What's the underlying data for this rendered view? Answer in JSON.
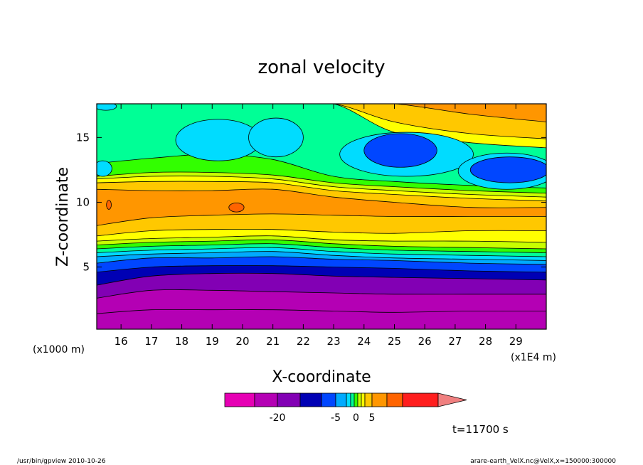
{
  "chart_data": {
    "type": "heatmap",
    "title": "zonal velocity",
    "xlabel": "X-coordinate",
    "ylabel": "Z-coordinate",
    "x_unit": "(x1E4 m)",
    "y_unit": "(x1000 m)",
    "xlim": [
      15.2,
      30.0
    ],
    "ylim": [
      0.2,
      17.6
    ],
    "x_ticks": [
      16,
      17,
      18,
      19,
      20,
      21,
      22,
      23,
      24,
      25,
      26,
      27,
      28,
      29
    ],
    "y_ticks": [
      5,
      10,
      15
    ],
    "x_tick_labels": [
      "16",
      "17",
      "18",
      "19",
      "20",
      "21",
      "22",
      "23",
      "24",
      "25",
      "26",
      "27",
      "28",
      "29"
    ],
    "y_tick_labels": [
      "5",
      "10",
      "15"
    ],
    "time_label": "t=11700 s",
    "colorbar": {
      "levels": [
        -30,
        -25,
        -20,
        -15,
        -10,
        -5,
        -2.5,
        -1.5,
        -0.5,
        0.5,
        1.5,
        2.5,
        5,
        10,
        15,
        20
      ],
      "colors": [
        "#e600b4",
        "#b400b4",
        "#8200b4",
        "#0000b4",
        "#0046ff",
        "#00aaff",
        "#00dcff",
        "#00ff96",
        "#32ff00",
        "#c8ff00",
        "#ffff00",
        "#ffc800",
        "#ff9600",
        "#ff6400",
        "#ff1e1e",
        "#f08080"
      ],
      "tick_values": [
        -20,
        -5,
        0,
        5
      ],
      "tick_labels": [
        "-20",
        "-5",
        "0",
        "5"
      ]
    },
    "bands": [
      {
        "v": -22,
        "base": [
          0.0,
          0.2,
          0.2,
          0.2,
          0.2,
          0.2,
          0.2,
          0.2
        ]
      },
      {
        "v": -21,
        "base": [
          1.4,
          1.7,
          1.7,
          1.7,
          1.6,
          1.5,
          1.6,
          1.6
        ]
      },
      {
        "v": -17,
        "base": [
          2.6,
          3.2,
          3.2,
          3.1,
          3.0,
          2.9,
          2.9,
          2.9
        ]
      },
      {
        "v": -13,
        "base": [
          3.6,
          4.3,
          4.5,
          4.5,
          4.3,
          4.2,
          4.1,
          4.0
        ]
      },
      {
        "v": -8,
        "base": [
          4.6,
          5.0,
          5.1,
          5.1,
          5.0,
          4.9,
          4.7,
          4.6
        ]
      },
      {
        "v": -4,
        "base": [
          5.3,
          5.7,
          5.7,
          5.8,
          5.6,
          5.5,
          5.3,
          5.2
        ]
      },
      {
        "v": -2,
        "base": [
          5.8,
          6.0,
          6.1,
          6.2,
          5.9,
          5.7,
          5.6,
          5.5
        ]
      },
      {
        "v": -1,
        "base": [
          6.1,
          6.3,
          6.4,
          6.5,
          6.2,
          6.0,
          5.9,
          5.8
        ]
      },
      {
        "v": 0,
        "base": [
          6.4,
          6.6,
          6.7,
          6.8,
          6.5,
          6.3,
          6.2,
          6.1
        ]
      },
      {
        "v": 1,
        "base": [
          6.7,
          6.9,
          7.0,
          7.1,
          6.8,
          6.6,
          6.5,
          6.4
        ]
      },
      {
        "v": 2,
        "base": [
          7.0,
          7.2,
          7.3,
          7.4,
          7.1,
          7.0,
          7.0,
          6.9
        ]
      },
      {
        "v": 4,
        "base": [
          7.4,
          7.8,
          7.9,
          7.9,
          7.7,
          7.6,
          7.8,
          7.8
        ]
      },
      {
        "v": 8,
        "base": [
          8.2,
          8.8,
          9.0,
          9.1,
          9.0,
          8.9,
          8.9,
          8.9
        ]
      },
      {
        "v": 4,
        "base": [
          11.0,
          10.9,
          10.9,
          11.0,
          10.4,
          10.0,
          9.6,
          9.6
        ]
      },
      {
        "v": 2,
        "base": [
          11.5,
          11.6,
          11.6,
          11.5,
          10.9,
          10.6,
          10.3,
          10.1
        ]
      },
      {
        "v": 1,
        "base": [
          11.8,
          12.0,
          12.0,
          11.8,
          11.2,
          10.9,
          10.6,
          10.4
        ]
      },
      {
        "v": 0,
        "base": [
          12.0,
          12.3,
          12.3,
          12.1,
          11.5,
          11.2,
          10.9,
          10.7
        ]
      },
      {
        "v": -1,
        "base": [
          13.0,
          13.4,
          13.7,
          13.3,
          12.0,
          11.6,
          11.3,
          11.1
        ]
      },
      {
        "v": 2,
        "base": [
          17.6,
          17.6,
          17.6,
          17.6,
          17.6,
          15.4,
          14.6,
          14.2
        ]
      },
      {
        "v": 4,
        "base": [
          17.6,
          17.6,
          17.6,
          17.6,
          17.6,
          16.2,
          15.3,
          14.9
        ]
      },
      {
        "v": 8,
        "base": [
          17.6,
          17.6,
          17.6,
          17.6,
          17.6,
          17.6,
          16.8,
          16.2
        ]
      }
    ],
    "band_x": [
      15.2,
      17.0,
      19.0,
      21.0,
      23.0,
      25.0,
      27.5,
      30.0
    ],
    "patches": [
      {
        "v": -2,
        "cx": 19.2,
        "cy": 14.8,
        "rx": 1.4,
        "ry": 1.6
      },
      {
        "v": -2,
        "cx": 21.1,
        "cy": 15.0,
        "rx": 0.9,
        "ry": 1.5
      },
      {
        "v": -2,
        "cx": 25.4,
        "cy": 13.7,
        "rx": 2.2,
        "ry": 1.7
      },
      {
        "v": -6,
        "cx": 25.2,
        "cy": 14.0,
        "rx": 1.2,
        "ry": 1.3
      },
      {
        "v": -2,
        "cx": 28.7,
        "cy": 12.4,
        "rx": 1.6,
        "ry": 1.4
      },
      {
        "v": -6,
        "cx": 28.8,
        "cy": 12.5,
        "rx": 1.3,
        "ry": 1.0
      },
      {
        "v": -2,
        "cx": 15.4,
        "cy": 12.6,
        "rx": 0.3,
        "ry": 0.6
      },
      {
        "v": -2,
        "cx": 15.5,
        "cy": 17.4,
        "rx": 0.35,
        "ry": 0.3
      },
      {
        "v": 12,
        "cx": 19.8,
        "cy": 9.6,
        "rx": 0.25,
        "ry": 0.35
      },
      {
        "v": 12,
        "cx": 15.6,
        "cy": 9.8,
        "rx": 0.08,
        "ry": 0.35
      }
    ],
    "footer_left": "/usr/bin/gpview  2010-10-26",
    "footer_right": "arare-earth_VelX.nc@VelX,x=150000:300000"
  }
}
